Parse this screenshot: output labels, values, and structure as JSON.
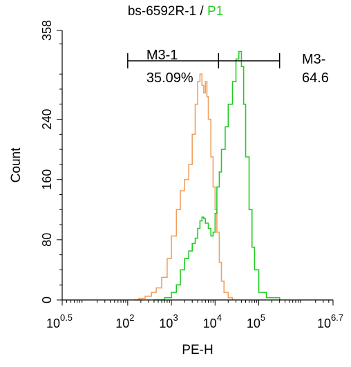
{
  "title": {
    "sample": "bs-6592R-1",
    "separator": " / ",
    "gate": "P1",
    "gate_color": "#22cc22"
  },
  "chart_data": {
    "type": "line",
    "xlabel": "PE-H",
    "ylabel": "Count",
    "xscale": "log",
    "xlim": [
      3.1623,
      5011872
    ],
    "ylim": [
      0,
      358
    ],
    "x_ticks": [
      {
        "base": "10",
        "exp": "0.5",
        "value": 3.1623
      },
      {
        "base": "10",
        "exp": "2",
        "value": 100
      },
      {
        "base": "10",
        "exp": "3",
        "value": 1000
      },
      {
        "base": "10",
        "exp": "4",
        "value": 10000
      },
      {
        "base": "10",
        "exp": "5",
        "value": 100000
      },
      {
        "base": "10",
        "exp": "6.7",
        "value": 5011872
      }
    ],
    "y_ticks": [
      {
        "label": "0",
        "value": 0
      },
      {
        "label": "80",
        "value": 80
      },
      {
        "label": "160",
        "value": 160
      },
      {
        "label": "240",
        "value": 240
      },
      {
        "label": "358",
        "value": 358
      }
    ],
    "series": [
      {
        "color": "#f0a060",
        "x": [
          140,
          180,
          250,
          350,
          450,
          600,
          800,
          1000,
          1300,
          1600,
          2000,
          2500,
          3000,
          3500,
          4000,
          4500,
          5000,
          5500,
          6000,
          6500,
          7000,
          8000,
          9000,
          10000,
          11000,
          12500,
          14000,
          16000,
          20000,
          25000
        ],
        "y": [
          0,
          2,
          5,
          10,
          16,
          30,
          55,
          85,
          120,
          145,
          160,
          180,
          220,
          260,
          290,
          300,
          285,
          275,
          290,
          270,
          240,
          190,
          150,
          120,
          90,
          50,
          25,
          10,
          3,
          0
        ]
      },
      {
        "color": "#22cc22",
        "x": [
          400,
          700,
          1000,
          1300,
          1600,
          2000,
          2500,
          3000,
          3500,
          4000,
          4500,
          5000,
          5500,
          6000,
          7000,
          8000,
          9000,
          10000,
          11000,
          12500,
          14000,
          17000,
          20000,
          25000,
          30000,
          35000,
          40000,
          45000,
          50000,
          60000,
          70000,
          80000,
          100000,
          150000,
          300000
        ],
        "y": [
          0,
          3,
          10,
          20,
          40,
          55,
          65,
          75,
          82,
          95,
          105,
          110,
          108,
          102,
          95,
          85,
          90,
          115,
          150,
          170,
          200,
          230,
          260,
          290,
          320,
          330,
          310,
          260,
          190,
          120,
          70,
          40,
          10,
          3,
          0
        ]
      }
    ],
    "gates": [
      {
        "label": "M3-1",
        "percent": "35.09%",
        "x_start": 100,
        "x_end": 12000
      },
      {
        "label": "M3-",
        "percent": "64.6",
        "x_start": 12000,
        "x_end": 300000
      }
    ]
  }
}
